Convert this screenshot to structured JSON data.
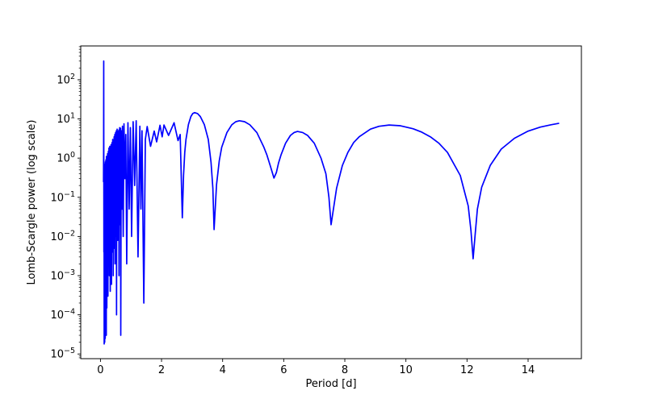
{
  "figure": {
    "background_color": "#ffffff"
  },
  "chart_data": {
    "type": "line",
    "title": "",
    "xlabel": "Period [d]",
    "ylabel": "Lomb-Scargle power (log scale)",
    "yscale": "log",
    "grid": false,
    "legend": null,
    "line_color": "#0000ff",
    "line_width": 1.7,
    "spine_color": "#000000",
    "xlim": [
      -0.645,
      15.745
    ],
    "ylim": [
      7.6e-06,
      730
    ],
    "x_ticks": [
      0,
      2,
      4,
      6,
      8,
      10,
      12,
      14
    ],
    "y_tick_exponents": [
      2,
      1,
      0,
      -1,
      -2,
      -3,
      -4,
      -5
    ],
    "y_tick_label_base": "10",
    "y_minor_ticks": true,
    "series": [
      {
        "name": "Lomb-Scargle power",
        "points": [
          [
            0.1,
            0.25
          ],
          [
            0.104,
            2.0
          ],
          [
            0.107,
            300
          ],
          [
            0.11,
            1.0
          ],
          [
            0.113,
            0.004
          ],
          [
            0.118,
            0.5
          ],
          [
            0.122,
            1.8e-05
          ],
          [
            0.127,
            0.6
          ],
          [
            0.131,
            0.003
          ],
          [
            0.135,
            0.45
          ],
          [
            0.139,
            2e-05
          ],
          [
            0.143,
            0.7
          ],
          [
            0.148,
            0.01
          ],
          [
            0.152,
            0.35
          ],
          [
            0.156,
            2.5e-05
          ],
          [
            0.161,
            0.8
          ],
          [
            0.165,
            0.002
          ],
          [
            0.169,
            0.5
          ],
          [
            0.174,
            5e-05
          ],
          [
            0.178,
            0.9
          ],
          [
            0.183,
            0.02
          ],
          [
            0.187,
            0.4
          ],
          [
            0.191,
            3e-05
          ],
          [
            0.196,
            1.1
          ],
          [
            0.2,
            0.005
          ],
          [
            0.205,
            0.6
          ],
          [
            0.209,
            0.00015
          ],
          [
            0.214,
            0.9
          ],
          [
            0.218,
            0.05
          ],
          [
            0.223,
            0.5
          ],
          [
            0.227,
            0.0008
          ],
          [
            0.232,
            1.3
          ],
          [
            0.236,
            0.1
          ],
          [
            0.241,
            0.7
          ],
          [
            0.245,
            0.0003
          ],
          [
            0.25,
            1.0
          ],
          [
            0.255,
            0.02
          ],
          [
            0.259,
            1.5
          ],
          [
            0.264,
            0.002
          ],
          [
            0.268,
            0.8
          ],
          [
            0.273,
            0.08
          ],
          [
            0.278,
            1.8
          ],
          [
            0.282,
            0.01
          ],
          [
            0.287,
            1.2
          ],
          [
            0.292,
            0.001
          ],
          [
            0.296,
            0.9
          ],
          [
            0.301,
            0.05
          ],
          [
            0.306,
            2.0
          ],
          [
            0.311,
            0.01
          ],
          [
            0.316,
            0.8
          ],
          [
            0.321,
            0.0004
          ],
          [
            0.326,
            1.5
          ],
          [
            0.331,
            0.05
          ],
          [
            0.336,
            0.9
          ],
          [
            0.341,
            0.002
          ],
          [
            0.347,
            2.2
          ],
          [
            0.352,
            0.1
          ],
          [
            0.357,
            1.1
          ],
          [
            0.362,
            0.0006
          ],
          [
            0.368,
            1.8
          ],
          [
            0.373,
            0.03
          ],
          [
            0.379,
            2.5
          ],
          [
            0.384,
            0.004
          ],
          [
            0.39,
            1.3
          ],
          [
            0.395,
            0.2
          ],
          [
            0.401,
            3.0
          ],
          [
            0.406,
            0.01
          ],
          [
            0.412,
            1.6
          ],
          [
            0.418,
            0.001
          ],
          [
            0.423,
            2.8
          ],
          [
            0.429,
            0.08
          ],
          [
            0.435,
            1.9
          ],
          [
            0.441,
            0.005
          ],
          [
            0.447,
            3.5
          ],
          [
            0.452,
            0.3
          ],
          [
            0.458,
            2.1
          ],
          [
            0.464,
            0.02
          ],
          [
            0.47,
            4.0
          ],
          [
            0.477,
            0.002
          ],
          [
            0.483,
            2.6
          ],
          [
            0.489,
            0.15
          ],
          [
            0.495,
            4.5
          ],
          [
            0.501,
            0.01
          ],
          [
            0.508,
            3.2
          ],
          [
            0.514,
            0.05
          ],
          [
            0.52,
            5.0
          ],
          [
            0.527,
            0.0001
          ],
          [
            0.533,
            2.9
          ],
          [
            0.54,
            0.4
          ],
          [
            0.546,
            5.5
          ],
          [
            0.553,
            0.03
          ],
          [
            0.56,
            3.6
          ],
          [
            0.566,
            0.008
          ],
          [
            0.573,
            4.8
          ],
          [
            0.58,
            0.2
          ],
          [
            0.587,
            2.4
          ],
          [
            0.594,
            0.05
          ],
          [
            0.601,
            5.2
          ],
          [
            0.608,
            0.001
          ],
          [
            0.615,
            3.8
          ],
          [
            0.622,
            0.3
          ],
          [
            0.629,
            6.0
          ],
          [
            0.636,
            0.02
          ],
          [
            0.643,
            4.2
          ],
          [
            0.651,
            0.1
          ],
          [
            0.658,
            5.8
          ],
          [
            0.665,
            3e-05
          ],
          [
            0.68,
            5.0
          ],
          [
            0.7,
            0.05
          ],
          [
            0.72,
            6.5
          ],
          [
            0.745,
            0.01
          ],
          [
            0.77,
            7.5
          ],
          [
            0.8,
            0.3
          ],
          [
            0.83,
            4.0
          ],
          [
            0.86,
            0.002
          ],
          [
            0.9,
            8.0
          ],
          [
            0.94,
            0.05
          ],
          [
            0.98,
            6.0
          ],
          [
            1.02,
            0.01
          ],
          [
            1.07,
            8.5
          ],
          [
            1.12,
            0.2
          ],
          [
            1.17,
            9.0
          ],
          [
            1.23,
            0.003
          ],
          [
            1.29,
            6.5
          ],
          [
            1.325,
            0.05
          ],
          [
            1.36,
            5.0
          ],
          [
            1.42,
            0.0002
          ],
          [
            1.47,
            3.0
          ],
          [
            1.53,
            6.4
          ],
          [
            1.64,
            2.0
          ],
          [
            1.76,
            4.9
          ],
          [
            1.84,
            2.6
          ],
          [
            1.95,
            6.9
          ],
          [
            2.02,
            3.5
          ],
          [
            2.08,
            7.0
          ],
          [
            2.23,
            3.8
          ],
          [
            2.41,
            8.0
          ],
          [
            2.54,
            2.8
          ],
          [
            2.61,
            4.0
          ],
          [
            2.68,
            0.03
          ],
          [
            2.72,
            0.36
          ],
          [
            2.76,
            1.4
          ],
          [
            2.8,
            3.0
          ],
          [
            2.88,
            7.2
          ],
          [
            2.96,
            11.5
          ],
          [
            3.02,
            13.7
          ],
          [
            3.08,
            14.5
          ],
          [
            3.18,
            13.7
          ],
          [
            3.27,
            11.5
          ],
          [
            3.4,
            7.2
          ],
          [
            3.53,
            3.0
          ],
          [
            3.62,
            0.78
          ],
          [
            3.68,
            0.17
          ],
          [
            3.72,
            0.015
          ],
          [
            3.8,
            0.21
          ],
          [
            3.89,
            0.86
          ],
          [
            3.97,
            1.9
          ],
          [
            4.14,
            4.5
          ],
          [
            4.3,
            7.1
          ],
          [
            4.43,
            8.5
          ],
          [
            4.55,
            9.0
          ],
          [
            4.72,
            8.5
          ],
          [
            4.89,
            7.1
          ],
          [
            5.12,
            4.5
          ],
          [
            5.35,
            1.9
          ],
          [
            5.45,
            1.2
          ],
          [
            5.57,
            0.6
          ],
          [
            5.68,
            0.31
          ],
          [
            5.76,
            0.43
          ],
          [
            5.83,
            0.75
          ],
          [
            5.91,
            1.2
          ],
          [
            6.06,
            2.4
          ],
          [
            6.22,
            3.8
          ],
          [
            6.34,
            4.5
          ],
          [
            6.45,
            4.8
          ],
          [
            6.62,
            4.5
          ],
          [
            6.78,
            3.8
          ],
          [
            7.0,
            2.4
          ],
          [
            7.22,
            1.0
          ],
          [
            7.38,
            0.4
          ],
          [
            7.48,
            0.1
          ],
          [
            7.55,
            0.02
          ],
          [
            7.73,
            0.17
          ],
          [
            7.92,
            0.65
          ],
          [
            8.1,
            1.4
          ],
          [
            8.29,
            2.5
          ],
          [
            8.47,
            3.5
          ],
          [
            8.84,
            5.5
          ],
          [
            9.12,
            6.5
          ],
          [
            9.45,
            7.0
          ],
          [
            9.82,
            6.7
          ],
          [
            10.24,
            5.6
          ],
          [
            10.52,
            4.6
          ],
          [
            10.8,
            3.5
          ],
          [
            11.08,
            2.4
          ],
          [
            11.36,
            1.4
          ],
          [
            11.78,
            0.36
          ],
          [
            12.04,
            0.06
          ],
          [
            12.13,
            0.014
          ],
          [
            12.2,
            0.0027
          ],
          [
            12.27,
            0.012
          ],
          [
            12.34,
            0.05
          ],
          [
            12.48,
            0.18
          ],
          [
            12.76,
            0.65
          ],
          [
            13.12,
            1.7
          ],
          [
            13.55,
            3.2
          ],
          [
            14.0,
            4.9
          ],
          [
            14.4,
            6.2
          ],
          [
            14.75,
            7.1
          ],
          [
            15.0,
            7.7
          ]
        ]
      }
    ]
  }
}
